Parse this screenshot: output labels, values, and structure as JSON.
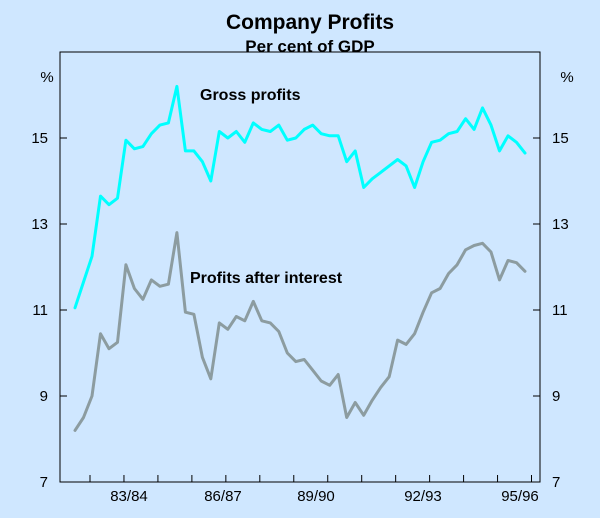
{
  "chart_data": {
    "type": "line",
    "title": "Company Profits",
    "subtitle": "Per cent of GDP",
    "y_unit_left": "%",
    "y_unit_right": "%",
    "ylim": [
      7,
      17
    ],
    "y_ticks": [
      7,
      9,
      11,
      13,
      15
    ],
    "x_tick_labels": [
      "83/84",
      "86/87",
      "89/90",
      "92/93",
      "95/96"
    ],
    "grid": false,
    "series": [
      {
        "name": "Gross profits",
        "color": "#00ffff",
        "values": [
          11.05,
          11.65,
          12.25,
          13.65,
          13.45,
          13.6,
          14.95,
          14.75,
          14.8,
          15.1,
          15.3,
          15.35,
          16.2,
          14.7,
          14.7,
          14.45,
          14.0,
          15.15,
          15.0,
          15.15,
          14.9,
          15.35,
          15.2,
          15.15,
          15.3,
          14.95,
          15.0,
          15.2,
          15.3,
          15.1,
          15.05,
          15.05,
          14.45,
          14.7,
          13.85,
          14.05,
          14.2,
          14.35,
          14.5,
          14.35,
          13.85,
          14.45,
          14.9,
          14.95,
          15.1,
          15.15,
          15.45,
          15.2,
          15.7,
          15.3,
          14.7,
          15.05,
          14.9,
          14.65
        ]
      },
      {
        "name": "Profits after interest",
        "color": "#8c9ca0",
        "values": [
          8.2,
          8.5,
          9.0,
          10.45,
          10.1,
          10.25,
          12.05,
          11.5,
          11.25,
          11.7,
          11.55,
          11.6,
          12.8,
          10.95,
          10.9,
          9.9,
          9.4,
          10.7,
          10.55,
          10.85,
          10.75,
          11.2,
          10.75,
          10.7,
          10.5,
          10.0,
          9.8,
          9.85,
          9.6,
          9.35,
          9.25,
          9.5,
          8.5,
          8.85,
          8.55,
          8.9,
          9.2,
          9.45,
          10.3,
          10.2,
          10.45,
          10.95,
          11.4,
          11.5,
          11.85,
          12.05,
          12.4,
          12.5,
          12.55,
          12.35,
          11.7,
          12.15,
          12.1,
          11.9
        ]
      }
    ]
  }
}
